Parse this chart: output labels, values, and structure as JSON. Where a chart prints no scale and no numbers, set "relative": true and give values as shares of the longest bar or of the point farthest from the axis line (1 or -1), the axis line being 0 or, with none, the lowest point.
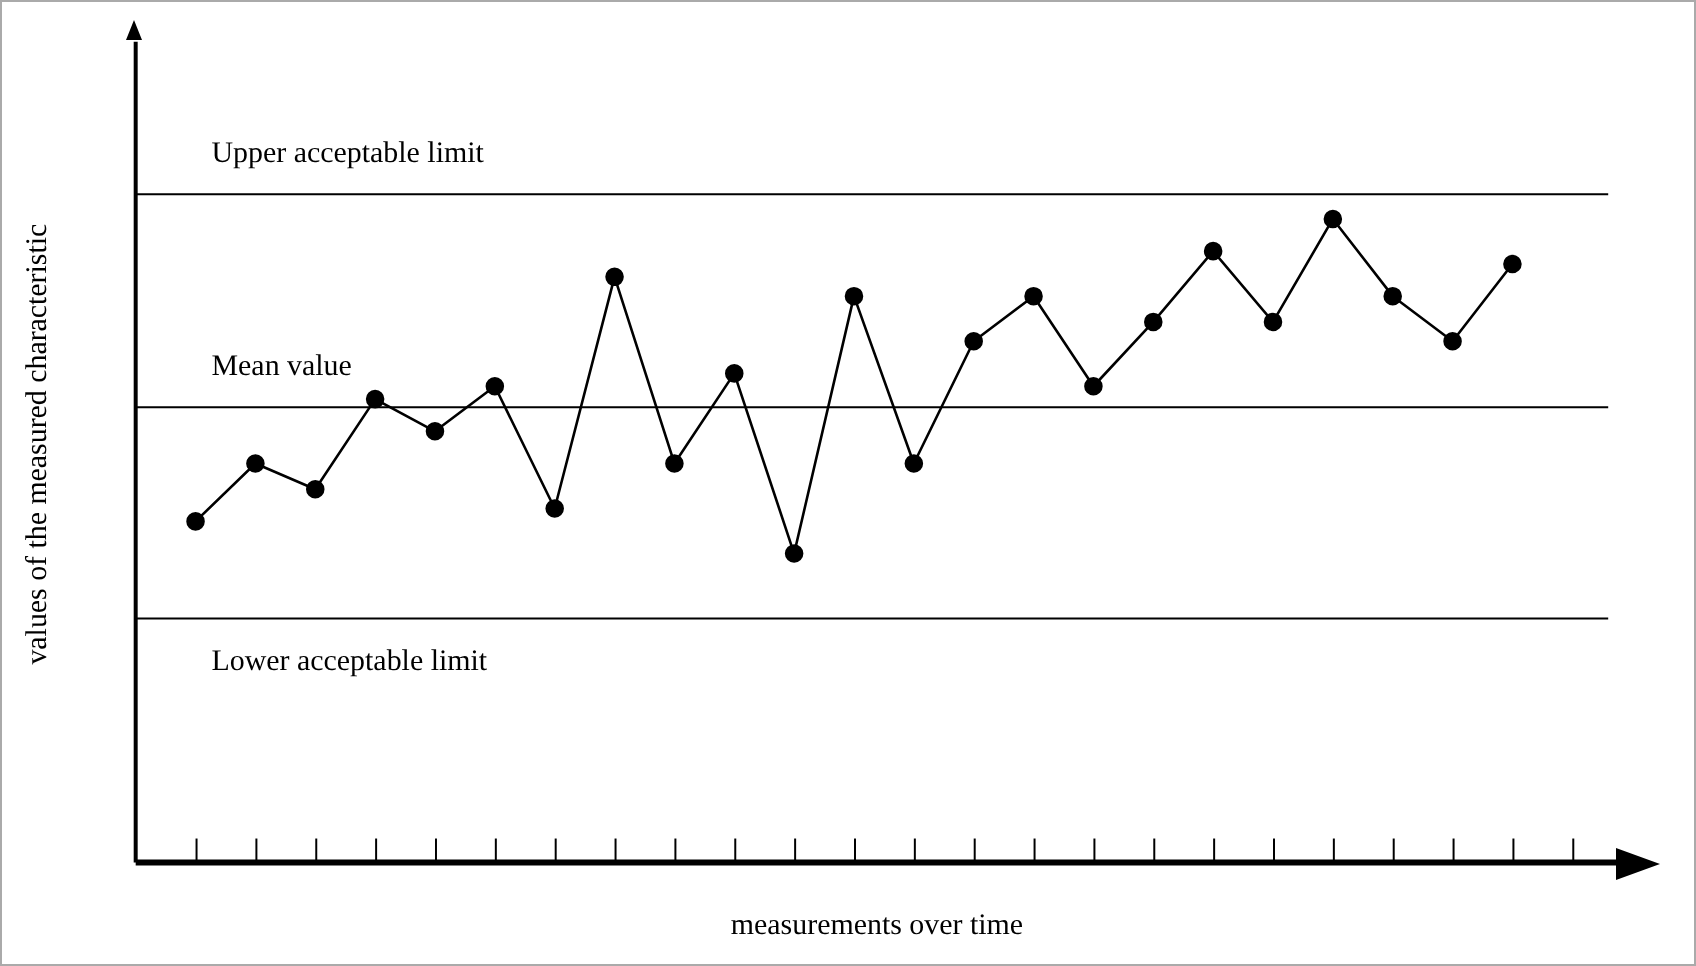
{
  "chart_data": {
    "type": "line",
    "xlabel": "measurements over time",
    "ylabel": "values of the measured characteristic",
    "categories": [
      null,
      null,
      null,
      null,
      null,
      null,
      null,
      null,
      null,
      null,
      null,
      null,
      null,
      null,
      null,
      null,
      null,
      null,
      null,
      null,
      null,
      null,
      null,
      null
    ],
    "values": [
      0.53,
      0.62,
      0.58,
      0.72,
      0.67,
      0.74,
      0.55,
      0.91,
      0.62,
      0.76,
      0.48,
      0.88,
      0.62,
      0.81,
      0.88,
      0.74,
      0.84,
      0.95,
      0.84,
      1,
      0.88,
      0.81,
      0.93,
      null
    ],
    "color": "#000000",
    "relative": true,
    "marker": "circle",
    "line_style": "solid",
    "ref_lines": [
      {
        "axis": "y",
        "value": 1.04,
        "label": "Upper acceptable limit",
        "color": "#000000"
      },
      {
        "axis": "y",
        "value": 0.71,
        "label": "Mean value",
        "color": "#000000"
      },
      {
        "axis": "y",
        "value": 0.38,
        "label": "Lower acceptable limit",
        "color": "#000000"
      }
    ]
  }
}
